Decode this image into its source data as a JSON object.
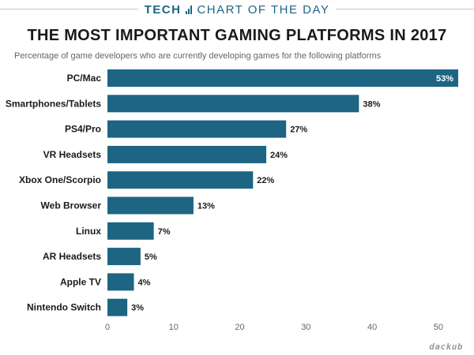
{
  "header": {
    "brand": "TECH",
    "tagline": "CHART OF THE DAY"
  },
  "colors": {
    "brand": "#1d6583",
    "bar": "#1d6583",
    "text": "#1a1a1a",
    "axis": "#666666"
  },
  "footer": {
    "logo": "dackub"
  },
  "chart_data": {
    "type": "bar",
    "orientation": "horizontal",
    "title": "THE MOST IMPORTANT GAMING PLATFORMS IN 2017",
    "subtitle": "Percentage of game developers who are currently developing games for the following platforms",
    "categories": [
      "PC/Mac",
      "Smartphones/Tablets",
      "PS4/Pro",
      "VR Headsets",
      "Xbox One/Scorpio",
      "Web Browser",
      "Linux",
      "AR Headsets",
      "Apple TV",
      "Nintendo Switch"
    ],
    "values": [
      53,
      38,
      27,
      24,
      22,
      13,
      7,
      5,
      4,
      3
    ],
    "data_labels": [
      "53%",
      "38%",
      "27%",
      "24%",
      "22%",
      "13%",
      "7%",
      "5%",
      "4%",
      "3%"
    ],
    "xticks": [
      0,
      10,
      20,
      30,
      40,
      50
    ],
    "xlim": [
      0,
      53
    ],
    "xlabel": "",
    "ylabel": "",
    "grid": false
  }
}
